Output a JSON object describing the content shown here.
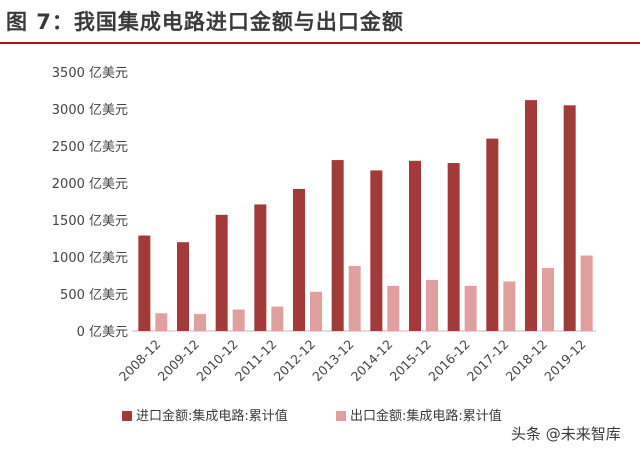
{
  "figure": {
    "title": "图  7：我国集成电路进口金额与出口金额",
    "accent_color": "#b3121d"
  },
  "chart_data": {
    "type": "bar",
    "categories": [
      "2008-12",
      "2009-12",
      "2010-12",
      "2011-12",
      "2012-12",
      "2013-12",
      "2014-12",
      "2015-12",
      "2016-12",
      "2017-12",
      "2018-12",
      "2019-12"
    ],
    "series": [
      {
        "name": "进口金额:集成电路:累计值",
        "color": "#a33a3a",
        "values": [
          1290,
          1200,
          1570,
          1710,
          1920,
          2310,
          2170,
          2300,
          2270,
          2600,
          3120,
          3050
        ]
      },
      {
        "name": "出口金额:集成电路:累计值",
        "color": "#e0a0a0",
        "values": [
          240,
          230,
          290,
          330,
          530,
          880,
          610,
          690,
          610,
          670,
          850,
          1020
        ]
      }
    ],
    "yticks": [
      {
        "value": 0,
        "label": "0 亿美元"
      },
      {
        "value": 500,
        "label": "500 亿美元"
      },
      {
        "value": 1000,
        "label": "1000 亿美元"
      },
      {
        "value": 1500,
        "label": "1500 亿美元"
      },
      {
        "value": 2000,
        "label": "2000 亿美元"
      },
      {
        "value": 2500,
        "label": "2500 亿美元"
      },
      {
        "value": 3000,
        "label": "3000 亿美元"
      },
      {
        "value": 3500,
        "label": "3500 亿美元"
      }
    ],
    "ylim": [
      0,
      3500
    ],
    "grid": false,
    "legend": "bottom"
  },
  "watermark": {
    "text": "头条 @未来智库"
  }
}
